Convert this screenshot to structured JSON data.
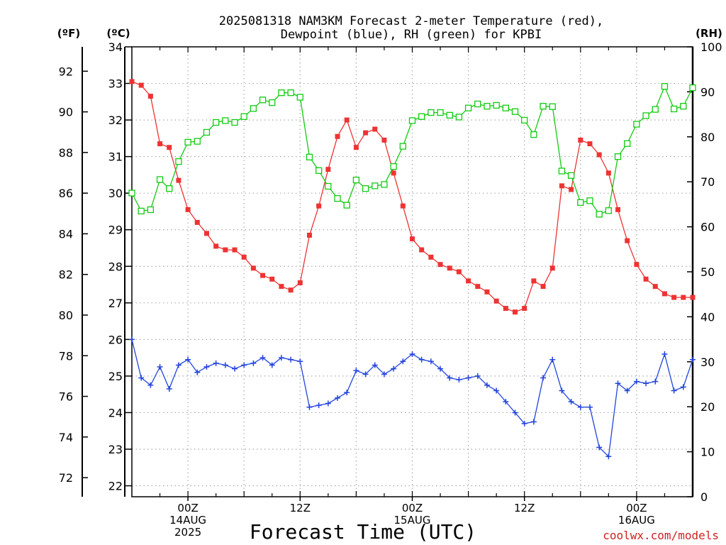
{
  "chart_data": {
    "type": "line",
    "title_line1": "2025081318 NAM3KM Forecast 2-meter Temperature (red),",
    "title_line2": "Dewpoint (blue), RH (green) for KPBI",
    "xlabel": "Forecast Time (UTC)",
    "credit": "coolwx.com/models",
    "unit_left_f": "(ºF)",
    "unit_left_c": "(ºC)",
    "unit_right": "(RH)",
    "grid": true,
    "x_range_hours": [
      18,
      78
    ],
    "x_ticks": [
      {
        "hour": 24,
        "line1": "00Z",
        "line2": "14AUG",
        "line3": "2025"
      },
      {
        "hour": 36,
        "line1": "12Z",
        "line2": "",
        "line3": ""
      },
      {
        "hour": 48,
        "line1": "00Z",
        "line2": "15AUG",
        "line3": ""
      },
      {
        "hour": 60,
        "line1": "12Z",
        "line2": "",
        "line3": ""
      },
      {
        "hour": 72,
        "line1": "00Z",
        "line2": "16AUG",
        "line3": ""
      }
    ],
    "y_c_range": [
      21.7,
      34.0
    ],
    "y_c_ticks": [
      22,
      23,
      24,
      25,
      26,
      27,
      28,
      29,
      30,
      31,
      32,
      33,
      34
    ],
    "y_f_ticks": [
      72,
      74,
      76,
      78,
      80,
      82,
      84,
      86,
      88,
      90,
      92
    ],
    "y_rh_range": [
      0,
      100
    ],
    "y_rh_ticks": [
      0,
      10,
      20,
      30,
      40,
      50,
      60,
      70,
      80,
      90,
      100
    ],
    "colors": {
      "temperature": "#ee3333",
      "dewpoint": "#2244dd",
      "rh": "#11cc11",
      "credit": "#cc2222"
    },
    "series": [
      {
        "name": "Temperature",
        "axis": "C",
        "marker": "filled-square",
        "values": [
          33.05,
          32.95,
          32.65,
          31.35,
          31.25,
          30.35,
          29.55,
          29.2,
          28.9,
          28.55,
          28.45,
          28.45,
          28.25,
          27.95,
          27.75,
          27.65,
          27.45,
          27.35,
          27.55,
          28.85,
          29.65,
          30.65,
          31.55,
          32.0,
          31.25,
          31.65,
          31.75,
          31.45,
          30.55,
          29.65,
          28.75,
          28.45,
          28.25,
          28.05,
          27.95,
          27.85,
          27.6,
          27.45,
          27.3,
          27.05,
          26.85,
          26.75,
          26.85,
          27.6,
          27.45,
          27.95,
          30.2,
          30.1,
          31.45,
          31.35,
          31.05,
          30.55,
          29.55,
          28.7,
          28.05,
          27.65,
          27.45,
          27.25,
          27.15,
          27.15,
          27.15
        ]
      },
      {
        "name": "Dewpoint",
        "axis": "C",
        "marker": "plus",
        "values": [
          26.0,
          24.95,
          24.75,
          25.25,
          24.65,
          25.3,
          25.45,
          25.1,
          25.25,
          25.35,
          25.3,
          25.2,
          25.3,
          25.35,
          25.5,
          25.3,
          25.5,
          25.45,
          25.4,
          24.15,
          24.2,
          24.25,
          24.4,
          24.55,
          25.15,
          25.05,
          25.3,
          25.05,
          25.2,
          25.4,
          25.6,
          25.45,
          25.4,
          25.2,
          24.95,
          24.9,
          24.95,
          25.0,
          24.75,
          24.6,
          24.3,
          24.0,
          23.7,
          23.75,
          24.95,
          25.45,
          24.6,
          24.3,
          24.15,
          24.15,
          23.05,
          22.8,
          24.8,
          24.6,
          24.85,
          24.8,
          24.85,
          25.6,
          24.6,
          24.7,
          25.45
        ]
      },
      {
        "name": "RH",
        "axis": "RH",
        "marker": "open-square",
        "values": [
          67.5,
          63.5,
          63.8,
          70.5,
          68.5,
          74.5,
          78.8,
          79.0,
          81.0,
          83.2,
          83.6,
          83.2,
          84.5,
          86.3,
          88.2,
          87.6,
          89.8,
          89.8,
          88.8,
          75.5,
          72.5,
          69.0,
          66.3,
          64.8,
          70.4,
          68.5,
          69.1,
          69.4,
          73.4,
          77.9,
          83.6,
          84.5,
          85.4,
          85.4,
          84.8,
          84.4,
          86.4,
          87.3,
          86.8,
          87.0,
          86.4,
          85.6,
          83.7,
          80.5,
          86.8,
          86.7,
          72.4,
          71.4,
          65.4,
          65.8,
          62.8,
          63.6,
          75.6,
          78.5,
          82.8,
          84.7,
          86.1,
          91.2,
          86.2,
          86.8,
          90.9
        ]
      }
    ]
  }
}
